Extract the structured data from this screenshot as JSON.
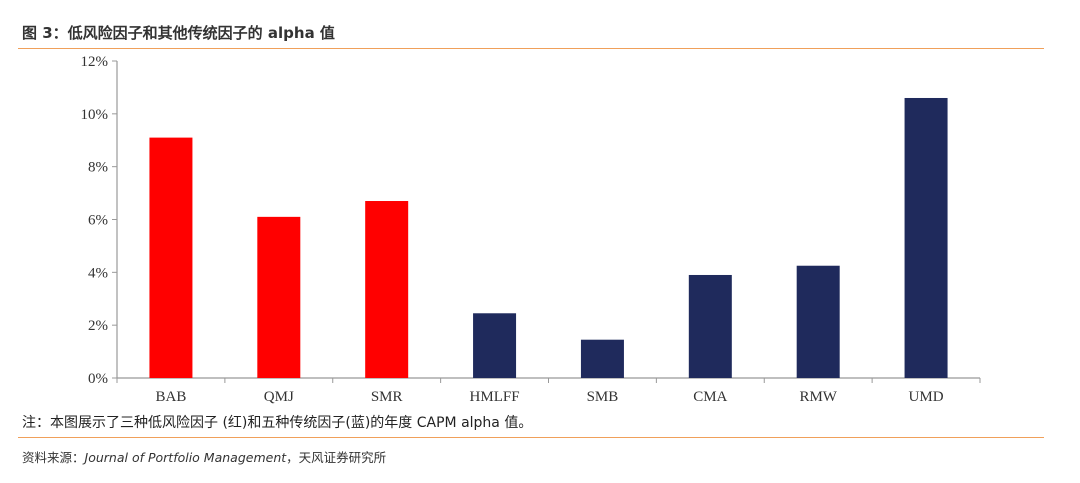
{
  "figure": {
    "title": "图 3：低风险因子和其他传统因子的 alpha 值",
    "note": "注：本图展示了三种低风险因子 (红)和五种传统因子(蓝)的年度 CAPM alpha 值。",
    "source_prefix": "资料来源：",
    "source_journal": "Journal of Portfolio Management",
    "source_suffix": "，天风证券研究所"
  },
  "colors": {
    "low_risk": "#ff0000",
    "traditional": "#1f2a5c",
    "accent_rule": "#f0a05a"
  },
  "chart_data": {
    "type": "bar",
    "title": "",
    "xlabel": "",
    "ylabel": "",
    "categories": [
      "BAB",
      "QMJ",
      "SMR",
      "HMLFF",
      "SMB",
      "CMA",
      "RMW",
      "UMD"
    ],
    "values": [
      9.1,
      6.1,
      6.7,
      2.45,
      1.45,
      3.9,
      4.25,
      10.6
    ],
    "groups": [
      "low_risk",
      "low_risk",
      "low_risk",
      "traditional",
      "traditional",
      "traditional",
      "traditional",
      "traditional"
    ],
    "ylim": [
      0,
      12
    ],
    "yticks": [
      0,
      2,
      4,
      6,
      8,
      10,
      12
    ],
    "ytick_labels": [
      "0%",
      "2%",
      "4%",
      "6%",
      "8%",
      "10%",
      "12%"
    ],
    "grid": false,
    "legend": "none"
  }
}
